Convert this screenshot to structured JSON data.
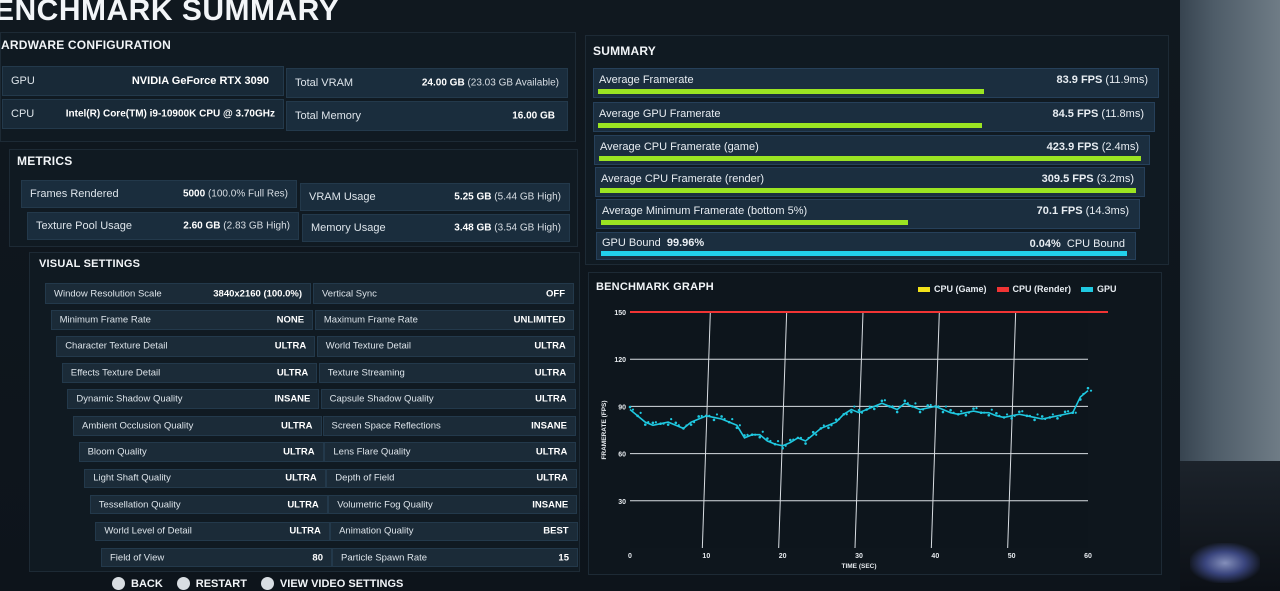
{
  "page": {
    "title": "ENCHMARK SUMMARY"
  },
  "colors": {
    "green_bar": "#9be422",
    "cyan_bar": "#22d1ec",
    "cpu_game": "#f2e21a",
    "cpu_render": "#f03434",
    "gpu": "#1fc8e0"
  },
  "hardware": {
    "header": "ARDWARE CONFIGURATION",
    "gpu_label": "GPU",
    "gpu_value": "NVIDIA GeForce RTX 3090",
    "cpu_label": "CPU",
    "cpu_value": "Intel(R) Core(TM) i9-10900K CPU @ 3.70GHz",
    "vram_label": "Total VRAM",
    "vram_value": "24.00 GB",
    "vram_sub": "(23.03 GB Available)",
    "mem_label": "Total Memory",
    "mem_value": "16.00 GB"
  },
  "metrics": {
    "header": "METRICS",
    "frames_label": "Frames Rendered",
    "frames_value": "5000",
    "frames_sub": "(100.0% Full Res)",
    "texpool_label": "Texture Pool Usage",
    "texpool_value": "2.60 GB",
    "texpool_sub": "(2.83 GB High)",
    "vram_label": "VRAM Usage",
    "vram_value": "5.25 GB",
    "vram_sub": "(5.44 GB High)",
    "mem_label": "Memory Usage",
    "mem_value": "3.48 GB",
    "mem_sub": "(3.54 GB High)"
  },
  "visual": {
    "header": "VISUAL SETTINGS",
    "left": [
      {
        "label": "Window Resolution Scale",
        "value": "3840x2160 (100.0%)"
      },
      {
        "label": "Minimum Frame Rate",
        "value": "NONE"
      },
      {
        "label": "Character Texture Detail",
        "value": "ULTRA"
      },
      {
        "label": "Effects Texture Detail",
        "value": "ULTRA"
      },
      {
        "label": "Dynamic Shadow Quality",
        "value": "INSANE"
      },
      {
        "label": "Ambient Occlusion Quality",
        "value": "ULTRA"
      },
      {
        "label": "Bloom Quality",
        "value": "ULTRA"
      },
      {
        "label": "Light Shaft Quality",
        "value": "ULTRA"
      },
      {
        "label": "Tessellation Quality",
        "value": "ULTRA"
      },
      {
        "label": "World Level of Detail",
        "value": "ULTRA"
      },
      {
        "label": "Field of View",
        "value": "80"
      }
    ],
    "right": [
      {
        "label": "Vertical Sync",
        "value": "OFF"
      },
      {
        "label": "Maximum Frame Rate",
        "value": "UNLIMITED"
      },
      {
        "label": "World Texture Detail",
        "value": "ULTRA"
      },
      {
        "label": "Texture Streaming",
        "value": "ULTRA"
      },
      {
        "label": "Capsule Shadow Quality",
        "value": "ULTRA"
      },
      {
        "label": "Screen Space Reflections",
        "value": "INSANE"
      },
      {
        "label": "Lens Flare Quality",
        "value": "ULTRA"
      },
      {
        "label": "Depth of Field",
        "value": "ULTRA"
      },
      {
        "label": "Volumetric Fog Quality",
        "value": "INSANE"
      },
      {
        "label": "Animation Quality",
        "value": "BEST"
      },
      {
        "label": "Particle Spawn Rate",
        "value": "15"
      }
    ]
  },
  "summary": {
    "header": "SUMMARY",
    "rows": [
      {
        "label": "Average Framerate",
        "value": "83.9 FPS",
        "sub": "(11.9ms)",
        "fill": 0.7
      },
      {
        "label": "Average GPU Framerate",
        "value": "84.5 FPS",
        "sub": "(11.8ms)",
        "fill": 0.7
      },
      {
        "label": "Average CPU Framerate (game)",
        "value": "423.9 FPS",
        "sub": "(2.4ms)",
        "fill": 1.0
      },
      {
        "label": "Average CPU Framerate (render)",
        "value": "309.5 FPS",
        "sub": "(3.2ms)",
        "fill": 1.0
      },
      {
        "label": "Average Minimum Framerate (bottom 5%)",
        "value": "70.1 FPS",
        "sub": "(14.3ms)",
        "fill": 0.58
      }
    ],
    "gpu_bound_label": "GPU Bound",
    "gpu_bound_value": "99.96%",
    "cpu_bound_value": "0.04%",
    "cpu_bound_label": "CPU Bound",
    "bound_fill": 0.9996
  },
  "graph": {
    "header": "BENCHMARK GRAPH",
    "legend": [
      "CPU (Game)",
      "CPU (Render)",
      "GPU"
    ],
    "ylabel": "FRAMERATE (FPS)",
    "xlabel": "TIME (SEC)",
    "yticks": [
      "150",
      "120",
      "90",
      "60",
      "30"
    ],
    "xticks": [
      "0",
      "10",
      "20",
      "30",
      "40",
      "50",
      "60"
    ]
  },
  "chart_data": {
    "type": "scatter",
    "xlabel": "TIME (SEC)",
    "ylabel": "FRAMERATE (FPS)",
    "xlim": [
      0,
      60
    ],
    "ylim": [
      0,
      150
    ],
    "series": [
      {
        "name": "CPU (Render)",
        "x": [
          0,
          60
        ],
        "y": [
          150,
          150
        ]
      },
      {
        "name": "GPU",
        "x": [
          0,
          1,
          2,
          3,
          4,
          5,
          6,
          7,
          8,
          9,
          10,
          11,
          12,
          13,
          14,
          15,
          16,
          17,
          18,
          19,
          20,
          21,
          22,
          23,
          24,
          25,
          26,
          27,
          28,
          29,
          30,
          31,
          32,
          33,
          34,
          35,
          36,
          37,
          38,
          39,
          40,
          41,
          42,
          43,
          44,
          45,
          46,
          47,
          48,
          49,
          50,
          51,
          52,
          53,
          54,
          55,
          56,
          57,
          58,
          59,
          60
        ],
        "y": [
          88,
          84,
          80,
          78,
          79,
          80,
          78,
          76,
          80,
          82,
          84,
          83,
          82,
          80,
          78,
          70,
          72,
          72,
          68,
          66,
          65,
          67,
          70,
          68,
          72,
          76,
          78,
          80,
          85,
          88,
          86,
          88,
          90,
          92,
          90,
          88,
          92,
          90,
          88,
          89,
          90,
          88,
          86,
          85,
          86,
          87,
          86,
          86,
          84,
          83,
          84,
          85,
          84,
          83,
          82,
          83,
          84,
          85,
          86,
          96,
          100
        ]
      }
    ]
  },
  "footer": {
    "back": "BACK",
    "restart": "RESTART",
    "video": "VIEW VIDEO SETTINGS"
  }
}
